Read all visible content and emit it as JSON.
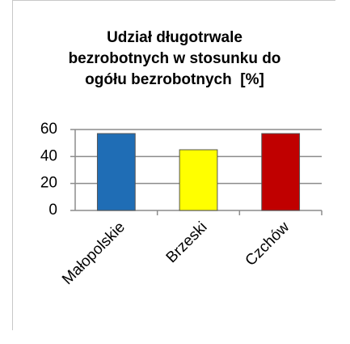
{
  "chart_data": {
    "type": "bar",
    "title": "Udział długotrwale bezrobotnych w stosunku do ogółu bezrobotnych  [%]",
    "categories": [
      "Małopolskie",
      "Brzeski",
      "Czchów"
    ],
    "values": [
      57,
      45,
      57
    ],
    "colors": [
      "#1f6db5",
      "#ffff00",
      "#c00000"
    ],
    "ylim": [
      0,
      60
    ],
    "yticks": [
      0,
      20,
      40,
      60
    ],
    "grid": true
  }
}
